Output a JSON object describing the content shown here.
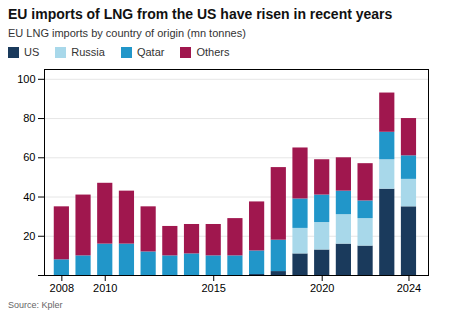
{
  "chart_data": {
    "type": "bar",
    "stacked": true,
    "title": "EU imports of LNG from the US have risen in recent years",
    "subtitle": "EU LNG imports by country of origin (mn tonnes)",
    "source": "Source: Kpler",
    "x": [
      2008,
      2009,
      2010,
      2011,
      2012,
      2013,
      2014,
      2015,
      2016,
      2017,
      2018,
      2019,
      2020,
      2021,
      2022,
      2023,
      2024
    ],
    "series": [
      {
        "name": "US",
        "color": "#1a3a5c",
        "values": [
          0,
          0,
          0,
          0,
          0,
          0,
          0,
          0,
          0,
          0.5,
          2,
          11,
          13,
          16,
          15,
          44,
          35
        ]
      },
      {
        "name": "Russia",
        "color": "#a8d8ea",
        "values": [
          0,
          0,
          0,
          0,
          0,
          0,
          0,
          0,
          0,
          0,
          0,
          13,
          14,
          15,
          14,
          15,
          14
        ]
      },
      {
        "name": "Qatar",
        "color": "#2196c9",
        "values": [
          8,
          10,
          16,
          16,
          12,
          10,
          11,
          10,
          10,
          12,
          16,
          15,
          14,
          12,
          9,
          14,
          12
        ]
      },
      {
        "name": "Others",
        "color": "#a0174e",
        "values": [
          27,
          31,
          31,
          27,
          23,
          15,
          15,
          16,
          19,
          25,
          37,
          26,
          18,
          17,
          19,
          20,
          19
        ]
      }
    ],
    "xlim": [
      2007.2,
      2024.9
    ],
    "xticks": [
      2008,
      2010,
      2015,
      2020,
      2024
    ],
    "ylim": [
      0,
      105
    ],
    "yticks": [
      {
        "value": 0,
        "label": null
      },
      20,
      40,
      60,
      80,
      100
    ],
    "grid": true
  }
}
